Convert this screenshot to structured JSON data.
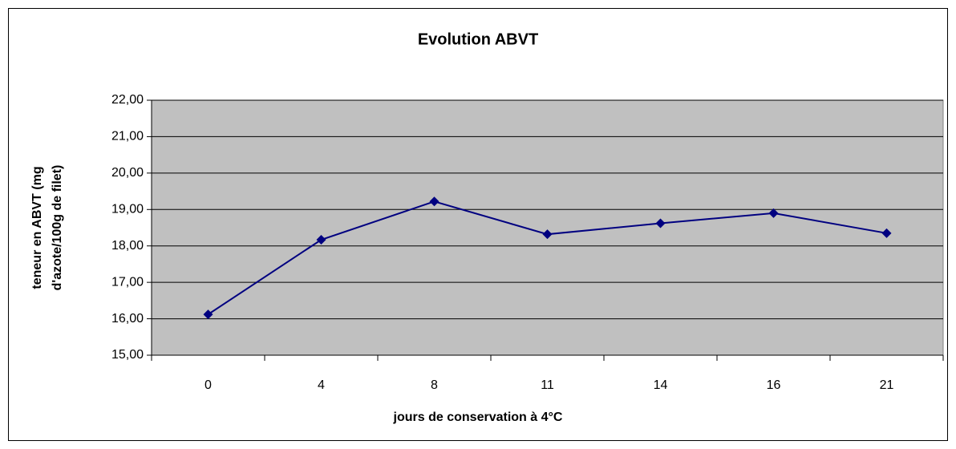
{
  "chart_data": {
    "type": "line",
    "title": "Evolution ABVT",
    "xlabel": "jours de conservation à 4°C",
    "ylabel": [
      "teneur en ABVT (mg",
      "d'azote/100g de filet)"
    ],
    "categories": [
      "0",
      "4",
      "8",
      "11",
      "14",
      "16",
      "21"
    ],
    "series": [
      {
        "name": "ABVT",
        "color": "#000080",
        "values": [
          16.12,
          18.17,
          19.22,
          18.32,
          18.62,
          18.9,
          18.35
        ]
      }
    ],
    "ylim": [
      15,
      22
    ],
    "yticks": [
      {
        "value": 15,
        "label": "15,00"
      },
      {
        "value": 16,
        "label": "16,00"
      },
      {
        "value": 17,
        "label": "17,00"
      },
      {
        "value": 18,
        "label": "18,00"
      },
      {
        "value": 19,
        "label": "19,00"
      },
      {
        "value": 20,
        "label": "20,00"
      },
      {
        "value": 21,
        "label": "21,00"
      },
      {
        "value": 22,
        "label": "22,00"
      }
    ],
    "grid": true
  }
}
